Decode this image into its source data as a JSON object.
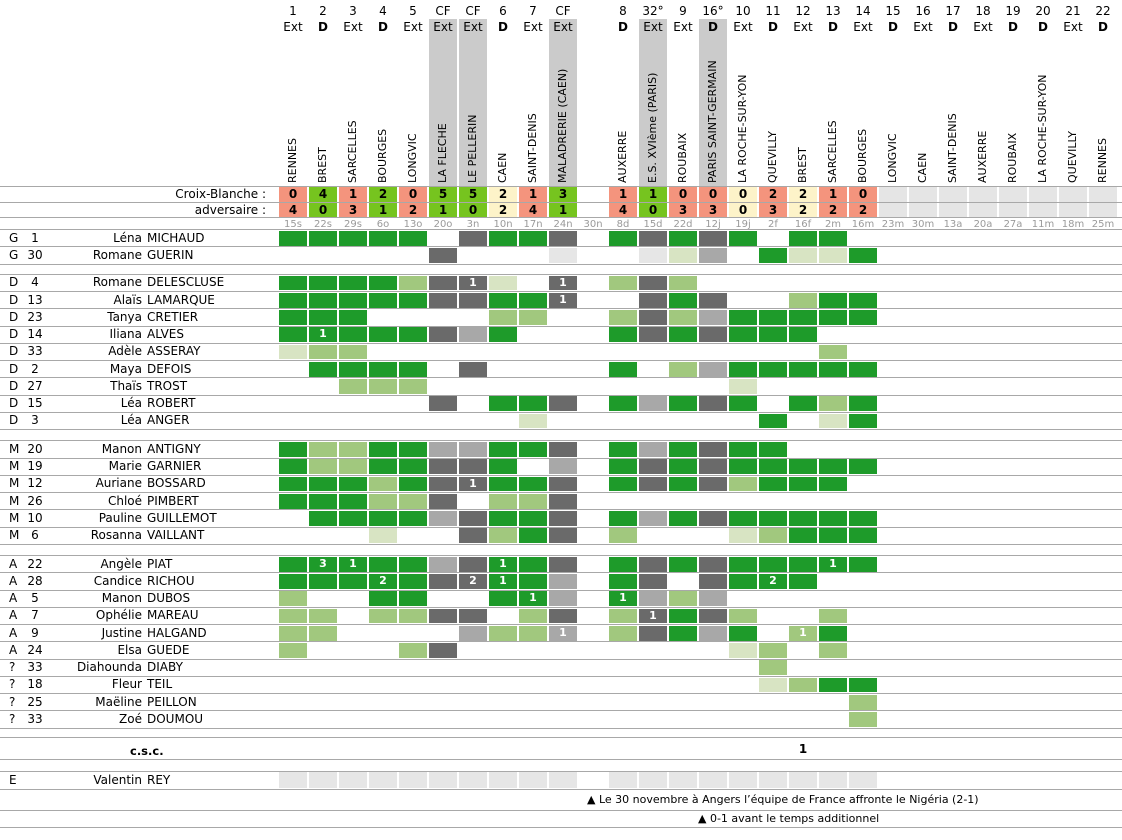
{
  "labels": {
    "team_score": "Croix-Blanche :",
    "opp_score": "adversaire :",
    "csc": "c.s.c.",
    "footnote_1": "▲ Le 30 novembre à Angers l’équipe de France affronte le Nigéria (2-1)",
    "footnote_2": "▲ 0-1 avant le temps additionnel"
  },
  "colors": {
    "played_full": "#1e9b2a",
    "played_partial": "#a1c87e",
    "played_brief": "#d8e4c3",
    "squad_dark_gray": "#6a6a6a",
    "squad_medium_gray": "#a8a8a8",
    "not_available": "#e6e6e6",
    "cup_band": "#cbcbcb",
    "win": "#76c41f",
    "loss": "#f4947d",
    "draw": "#fdf3c9",
    "future": "#e5e5e5"
  },
  "columns": [
    {
      "num": "1",
      "ha": "Ext",
      "opp": "RENNES",
      "date": "15s",
      "cup": false,
      "s1": "0",
      "s2": "4",
      "res": "L"
    },
    {
      "num": "2",
      "ha": "D",
      "opp": "BREST",
      "date": "22s",
      "cup": false,
      "s1": "4",
      "s2": "0",
      "res": "W"
    },
    {
      "num": "3",
      "ha": "Ext",
      "opp": "SARCELLES",
      "date": "29s",
      "cup": false,
      "s1": "1",
      "s2": "3",
      "res": "L"
    },
    {
      "num": "4",
      "ha": "D",
      "opp": "BOURGES",
      "date": "6o",
      "cup": false,
      "s1": "2",
      "s2": "1",
      "res": "W"
    },
    {
      "num": "5",
      "ha": "Ext",
      "opp": "LONGVIC",
      "date": "13o",
      "cup": false,
      "s1": "0",
      "s2": "2",
      "res": "L"
    },
    {
      "num": "CF",
      "ha": "Ext",
      "opp": "LA FLECHE",
      "date": "20o",
      "cup": true,
      "s1": "5",
      "s2": "1",
      "res": "W"
    },
    {
      "num": "CF",
      "ha": "Ext",
      "opp": "LE PELLERIN",
      "date": "3n",
      "cup": true,
      "s1": "5",
      "s2": "0",
      "res": "W"
    },
    {
      "num": "6",
      "ha": "D",
      "opp": "CAEN",
      "date": "10n",
      "cup": false,
      "s1": "2",
      "s2": "2",
      "res": "N"
    },
    {
      "num": "7",
      "ha": "Ext",
      "opp": "SAINT-DENIS",
      "date": "17n",
      "cup": false,
      "s1": "1",
      "s2": "4",
      "res": "L"
    },
    {
      "num": "CF",
      "ha": "Ext",
      "opp": "MALADRERIE (CAEN)",
      "date": "24n",
      "cup": true,
      "s1": "3",
      "s2": "1",
      "res": "W"
    },
    {
      "num": "",
      "ha": "",
      "opp": "",
      "date": "30n",
      "cup": false,
      "s1": "",
      "s2": "",
      "res": ""
    },
    {
      "num": "8",
      "ha": "D",
      "opp": "AUXERRE",
      "date": "8d",
      "cup": false,
      "s1": "1",
      "s2": "4",
      "res": "L"
    },
    {
      "num": "32°",
      "ha": "Ext",
      "opp": "E.S. XVIème (PARIS)",
      "date": "15d",
      "cup": true,
      "s1": "1",
      "s2": "0",
      "res": "W"
    },
    {
      "num": "9",
      "ha": "Ext",
      "opp": "ROUBAIX",
      "date": "22d",
      "cup": false,
      "s1": "0",
      "s2": "3",
      "res": "L"
    },
    {
      "num": "16°",
      "ha": "D",
      "opp": "PARIS SAINT-GERMAIN",
      "date": "12j",
      "cup": true,
      "s1": "0",
      "s2": "3",
      "res": "L"
    },
    {
      "num": "10",
      "ha": "Ext",
      "opp": "LA ROCHE-SUR-YON",
      "date": "19j",
      "cup": false,
      "s1": "0",
      "s2": "0",
      "res": "N"
    },
    {
      "num": "11",
      "ha": "D",
      "opp": "QUEVILLY",
      "date": "2f",
      "cup": false,
      "s1": "2",
      "s2": "3",
      "res": "L"
    },
    {
      "num": "12",
      "ha": "Ext",
      "opp": "BREST",
      "date": "16f",
      "cup": false,
      "s1": "2",
      "s2": "2",
      "res": "N"
    },
    {
      "num": "13",
      "ha": "D",
      "opp": "SARCELLES",
      "date": "2m",
      "cup": false,
      "s1": "1",
      "s2": "2",
      "res": "L"
    },
    {
      "num": "14",
      "ha": "Ext",
      "opp": "BOURGES",
      "date": "16m",
      "cup": false,
      "s1": "0",
      "s2": "2",
      "res": "L"
    },
    {
      "num": "15",
      "ha": "D",
      "opp": "LONGVIC",
      "date": "23m",
      "cup": false,
      "s1": "",
      "s2": "",
      "res": "F"
    },
    {
      "num": "16",
      "ha": "Ext",
      "opp": "CAEN",
      "date": "30m",
      "cup": false,
      "s1": "",
      "s2": "",
      "res": "F"
    },
    {
      "num": "17",
      "ha": "D",
      "opp": "SAINT-DENIS",
      "date": "13a",
      "cup": false,
      "s1": "",
      "s2": "",
      "res": "F"
    },
    {
      "num": "18",
      "ha": "Ext",
      "opp": "AUXERRE",
      "date": "20a",
      "cup": false,
      "s1": "",
      "s2": "",
      "res": "F"
    },
    {
      "num": "19",
      "ha": "D",
      "opp": "ROUBAIX",
      "date": "27a",
      "cup": false,
      "s1": "",
      "s2": "",
      "res": "F"
    },
    {
      "num": "20",
      "ha": "D",
      "opp": "LA ROCHE-SUR-YON",
      "date": "11m",
      "cup": false,
      "s1": "",
      "s2": "",
      "res": "F"
    },
    {
      "num": "21",
      "ha": "Ext",
      "opp": "QUEVILLY",
      "date": "18m",
      "cup": false,
      "s1": "",
      "s2": "",
      "res": "F"
    },
    {
      "num": "22",
      "ha": "D",
      "opp": "RENNES",
      "date": "25m",
      "cup": false,
      "s1": "",
      "s2": "",
      "res": "F"
    }
  ],
  "sections": [
    {
      "name": "goalkeepers",
      "players": [
        {
          "pos": "G",
          "num": "1",
          "first": "Léna",
          "last": "MICHAUD",
          "cells": [
            "G",
            "G",
            "G",
            "G",
            "G",
            "",
            "D",
            "G",
            "G",
            "D",
            "",
            "G",
            "D",
            "G",
            "D",
            "G",
            "",
            "G",
            "G",
            ""
          ]
        },
        {
          "pos": "G",
          "num": "30",
          "first": "Romane",
          "last": "GUERIN",
          "cells": [
            "",
            "",
            "",
            "",
            "",
            "D",
            "",
            "",
            "",
            "E",
            "",
            "",
            "E",
            "p",
            "m",
            "",
            "G",
            "p",
            "p",
            "G"
          ]
        }
      ]
    },
    {
      "name": "defenders",
      "players": [
        {
          "pos": "D",
          "num": "4",
          "first": "Romane",
          "last": "DELESCLUSE",
          "cells": [
            "G",
            "G",
            "G",
            "G",
            "g",
            "D",
            "D1",
            "p",
            "",
            "D1",
            "",
            "g",
            "D",
            "g",
            "",
            "",
            "",
            "",
            "",
            ""
          ]
        },
        {
          "pos": "D",
          "num": "13",
          "first": "Alaïs",
          "last": "LAMARQUE",
          "cells": [
            "G",
            "G",
            "G",
            "G",
            "G",
            "D",
            "D",
            "G",
            "G",
            "D1",
            "",
            "",
            "D",
            "G",
            "D",
            "",
            "",
            "g",
            "G",
            "G"
          ]
        },
        {
          "pos": "D",
          "num": "23",
          "first": "Tanya",
          "last": "CRETIER",
          "cells": [
            "G",
            "G",
            "G",
            "",
            "",
            "",
            "",
            "g",
            "g",
            "",
            "",
            "g",
            "D",
            "g",
            "m",
            "G",
            "G",
            "G",
            "G",
            "G"
          ]
        },
        {
          "pos": "D",
          "num": "14",
          "first": "Iliana",
          "last": "ALVES",
          "cells": [
            "G",
            "G1",
            "G",
            "G",
            "G",
            "D",
            "m",
            "G",
            "",
            "",
            "",
            "G",
            "D",
            "G",
            "D",
            "G",
            "G",
            "G",
            "",
            ""
          ]
        },
        {
          "pos": "D",
          "num": "33",
          "first": "Adèle",
          "last": "ASSERAY",
          "cells": [
            "p",
            "g",
            "g",
            "",
            "",
            "",
            "",
            "",
            "",
            "",
            "",
            "",
            "",
            "",
            "",
            "",
            "",
            "",
            "g",
            ""
          ]
        },
        {
          "pos": "D",
          "num": "2",
          "first": "Maya",
          "last": "DEFOIS",
          "cells": [
            "",
            "G",
            "G",
            "G",
            "G",
            "",
            "D",
            "",
            "",
            "",
            "",
            "G",
            "",
            "g",
            "m",
            "G",
            "G",
            "G",
            "G",
            "G"
          ]
        },
        {
          "pos": "D",
          "num": "27",
          "first": "Thaïs",
          "last": "TROST",
          "cells": [
            "",
            "",
            "g",
            "g",
            "g",
            "",
            "",
            "",
            "",
            "",
            "",
            "",
            "",
            "",
            "",
            "p",
            "",
            "",
            "",
            ""
          ]
        },
        {
          "pos": "D",
          "num": "15",
          "first": "Léa",
          "last": "ROBERT",
          "cells": [
            "",
            "",
            "",
            "",
            "",
            "D",
            "",
            "G",
            "G",
            "D",
            "",
            "G",
            "m",
            "G",
            "D",
            "G",
            "",
            "G",
            "g",
            "G"
          ]
        },
        {
          "pos": "D",
          "num": "3",
          "first": "Léa",
          "last": "ANGER",
          "cells": [
            "",
            "",
            "",
            "",
            "",
            "",
            "",
            "",
            "p",
            "",
            "",
            "",
            "",
            "",
            "",
            "",
            "G",
            "",
            "p",
            "G"
          ]
        }
      ]
    },
    {
      "name": "midfielders",
      "players": [
        {
          "pos": "M",
          "num": "20",
          "first": "Manon",
          "last": "ANTIGNY",
          "cells": [
            "G",
            "g",
            "g",
            "G",
            "G",
            "m",
            "m",
            "G",
            "G",
            "D",
            "",
            "G",
            "m",
            "G",
            "D",
            "G",
            "G",
            "",
            "",
            ""
          ]
        },
        {
          "pos": "M",
          "num": "19",
          "first": "Marie",
          "last": "GARNIER",
          "cells": [
            "G",
            "g",
            "g",
            "G",
            "G",
            "D",
            "D",
            "G",
            "",
            "m",
            "",
            "G",
            "D",
            "G",
            "D",
            "G",
            "G",
            "G",
            "G",
            "G"
          ]
        },
        {
          "pos": "M",
          "num": "12",
          "first": "Auriane",
          "last": "BOSSARD",
          "cells": [
            "G",
            "G",
            "G",
            "g",
            "G",
            "D",
            "D1",
            "G",
            "G",
            "D",
            "",
            "G",
            "D",
            "G",
            "D",
            "g",
            "G",
            "G",
            "G",
            ""
          ]
        },
        {
          "pos": "M",
          "num": "26",
          "first": "Chloé",
          "last": "PIMBERT",
          "cells": [
            "G",
            "G",
            "G",
            "g",
            "g",
            "D",
            "",
            "g",
            "g",
            "D",
            "",
            "",
            "",
            "",
            "",
            "",
            "",
            "",
            "",
            ""
          ]
        },
        {
          "pos": "M",
          "num": "10",
          "first": "Pauline",
          "last": "GUILLEMOT",
          "cells": [
            "",
            "G",
            "G",
            "G",
            "G",
            "m",
            "D",
            "G",
            "G",
            "D",
            "",
            "G",
            "m",
            "G",
            "D",
            "G",
            "G",
            "G",
            "G",
            "G"
          ]
        },
        {
          "pos": "M",
          "num": "6",
          "first": "Rosanna",
          "last": "VAILLANT",
          "cells": [
            "",
            "",
            "",
            "p",
            "",
            "",
            "D",
            "g",
            "G",
            "D",
            "",
            "g",
            "",
            "",
            "",
            "p",
            "g",
            "G",
            "G",
            "G"
          ]
        }
      ]
    },
    {
      "name": "attackers",
      "players": [
        {
          "pos": "A",
          "num": "22",
          "first": "Angèle",
          "last": "PIAT",
          "cells": [
            "G",
            "G3",
            "G1",
            "G",
            "G",
            "m",
            "D",
            "G1",
            "G",
            "D",
            "",
            "G",
            "D",
            "G",
            "D",
            "G",
            "G",
            "G",
            "G1",
            "G"
          ]
        },
        {
          "pos": "A",
          "num": "28",
          "first": "Candice",
          "last": "RICHOU",
          "cells": [
            "G",
            "G",
            "G",
            "G2",
            "G",
            "D",
            "D2",
            "G1",
            "G",
            "m",
            "",
            "G",
            "D",
            "",
            "D",
            "G",
            "G2",
            "G",
            "",
            ""
          ]
        },
        {
          "pos": "A",
          "num": "5",
          "first": "Manon",
          "last": "DUBOS",
          "cells": [
            "g",
            "",
            "",
            "G",
            "G",
            "",
            "",
            "G",
            "G1",
            "m",
            "",
            "G1",
            "m",
            "g",
            "m",
            "",
            "",
            "",
            "",
            ""
          ]
        },
        {
          "pos": "A",
          "num": "7",
          "first": "Ophélie",
          "last": "MAREAU",
          "cells": [
            "g",
            "g",
            "",
            "g",
            "g",
            "D",
            "D",
            "",
            "g",
            "D",
            "",
            "g",
            "D1",
            "G",
            "D",
            "g",
            "",
            "",
            "g",
            ""
          ]
        },
        {
          "pos": "A",
          "num": "9",
          "first": "Justine",
          "last": "HALGAND",
          "cells": [
            "g",
            "g",
            "",
            "",
            "",
            "",
            "m",
            "g",
            "g",
            "m1",
            "",
            "g",
            "D",
            "G",
            "m",
            "G",
            "",
            "g1",
            "G",
            ""
          ]
        },
        {
          "pos": "A",
          "num": "24",
          "first": "Elsa",
          "last": "GUEDE",
          "cells": [
            "g",
            "",
            "",
            "",
            "g",
            "D",
            "",
            "",
            "",
            "",
            "",
            "",
            "",
            "",
            "",
            "p",
            "g",
            "",
            "g",
            ""
          ]
        },
        {
          "pos": "?",
          "num": "33",
          "first": "Diahounda",
          "last": "DIABY",
          "cells": [
            "",
            "",
            "",
            "",
            "",
            "",
            "",
            "",
            "",
            "",
            "",
            "",
            "",
            "",
            "",
            "",
            "g",
            "",
            "",
            ""
          ]
        },
        {
          "pos": "?",
          "num": "18",
          "first": "Fleur",
          "last": "TEIL",
          "cells": [
            "",
            "",
            "",
            "",
            "",
            "",
            "",
            "",
            "",
            "",
            "",
            "",
            "",
            "",
            "",
            "",
            "p",
            "g",
            "G",
            "G"
          ]
        },
        {
          "pos": "?",
          "num": "25",
          "first": "Maëline",
          "last": "PEILLON",
          "cells": [
            "",
            "",
            "",
            "",
            "",
            "",
            "",
            "",
            "",
            "",
            "",
            "",
            "",
            "",
            "",
            "",
            "",
            "",
            "",
            "g"
          ]
        },
        {
          "pos": "?",
          "num": "33",
          "first": "Zoé",
          "last": "DOUMOU",
          "cells": [
            "",
            "",
            "",
            "",
            "",
            "",
            "",
            "",
            "",
            "",
            "",
            "",
            "",
            "",
            "",
            "",
            "",
            "",
            "",
            "g"
          ]
        }
      ]
    }
  ],
  "csc_row": {
    "cells": {
      "17": "1"
    }
  },
  "staff_row": {
    "pos": "E",
    "first": "Valentin",
    "last": "REY",
    "cells": [
      "E",
      "E",
      "E",
      "E",
      "E",
      "E",
      "E",
      "E",
      "E",
      "E",
      "",
      "E",
      "E",
      "E",
      "E",
      "E",
      "E",
      "E",
      "E",
      "E"
    ]
  }
}
